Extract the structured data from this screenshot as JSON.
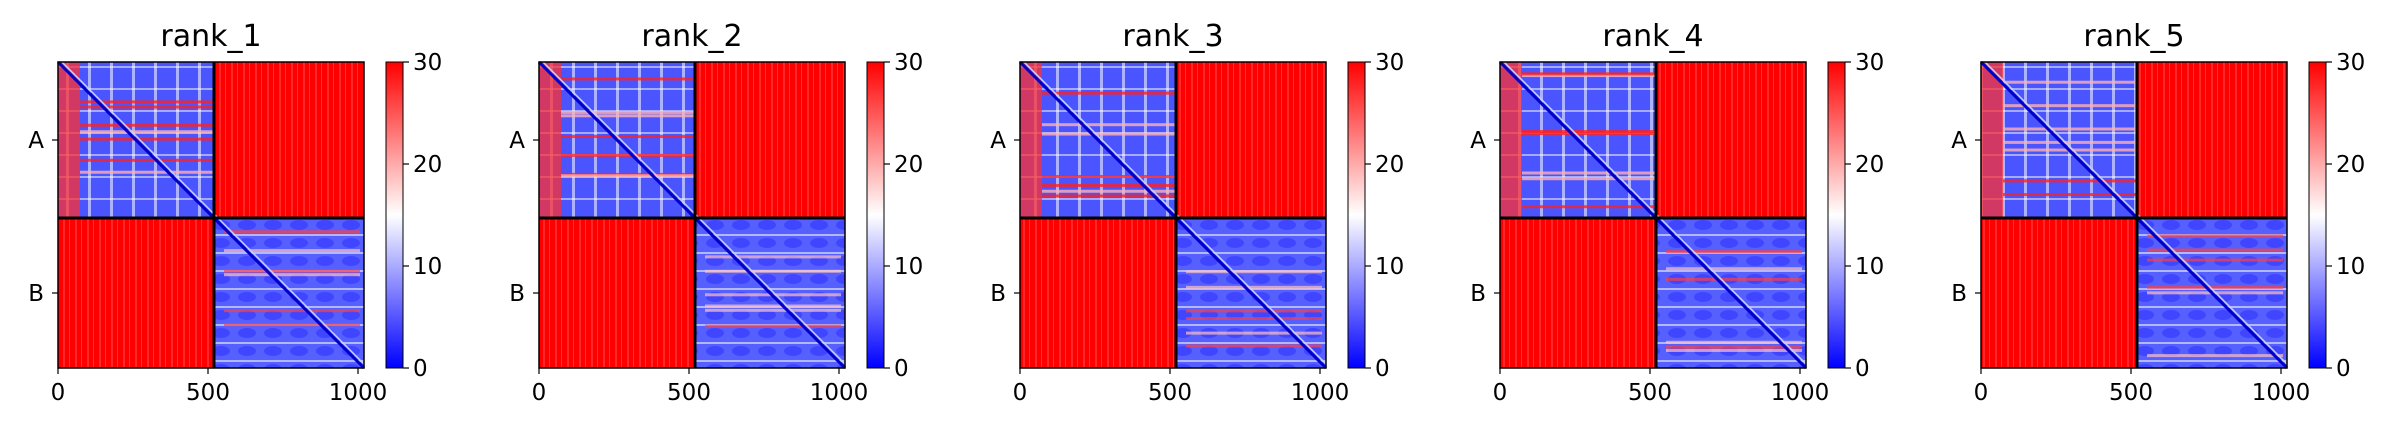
{
  "chart_data": {
    "type": "heatmap",
    "colormap": {
      "low": "#0000ff",
      "mid": "#ffffff",
      "high": "#ff0000"
    },
    "x_ticks": [
      0,
      500,
      1000
    ],
    "xlim": [
      0,
      1020
    ],
    "chain_boundary": 520,
    "chains": [
      {
        "label": "A",
        "start": 0,
        "end": 520
      },
      {
        "label": "B",
        "start": 520,
        "end": 1020
      }
    ],
    "colorbar": {
      "min": 0,
      "max": 30,
      "ticks": [
        0,
        10,
        20,
        30
      ]
    },
    "panels": [
      {
        "title": "rank_1"
      },
      {
        "title": "rank_2"
      },
      {
        "title": "rank_3"
      },
      {
        "title": "rank_4"
      },
      {
        "title": "rank_5"
      }
    ]
  }
}
